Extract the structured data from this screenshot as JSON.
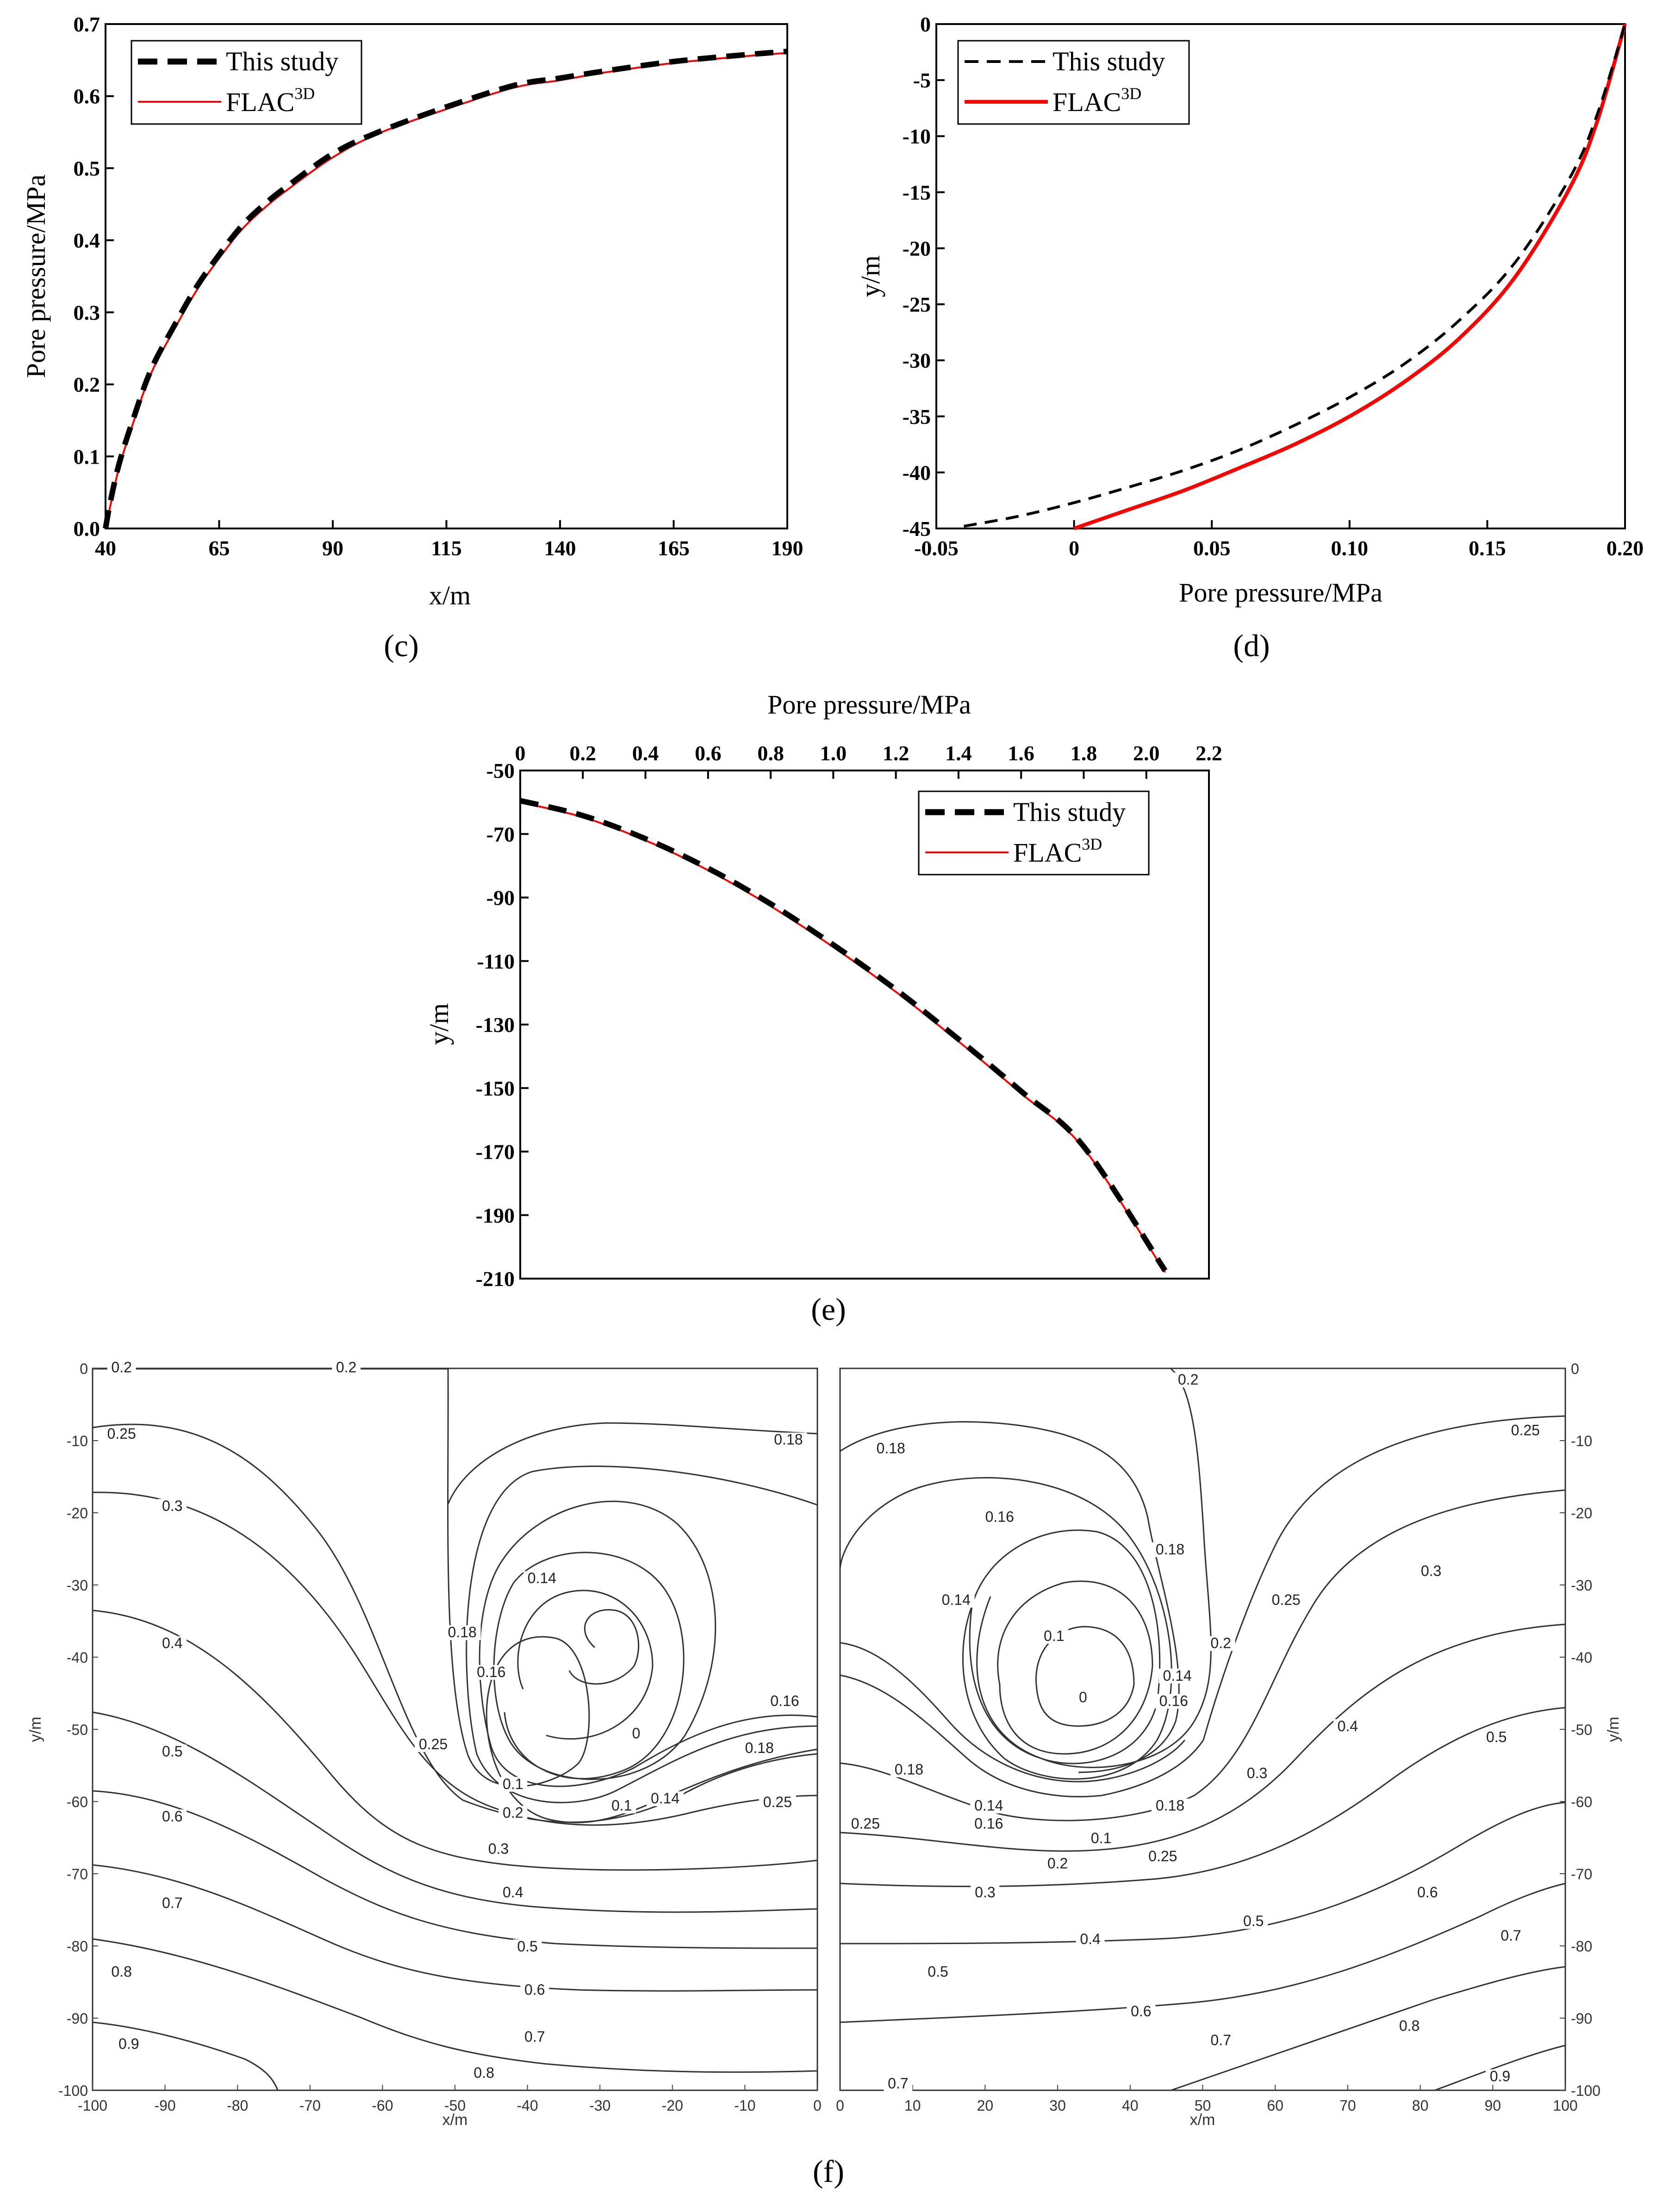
{
  "chart_data": [
    {
      "id": "c",
      "type": "line",
      "panel_label": "(c)",
      "xlabel": "x/m",
      "ylabel": "Pore pressure/MPa",
      "xlim": [
        40,
        190
      ],
      "ylim": [
        0,
        0.7
      ],
      "xticks": [
        "40",
        "65",
        "90",
        "115",
        "140",
        "165",
        "190"
      ],
      "yticks": [
        "0.0",
        "0.1",
        "0.2",
        "0.3",
        "0.4",
        "0.5",
        "0.6",
        "0.7"
      ],
      "legend_position": "top-left",
      "series": [
        {
          "name": "This study",
          "legend_main": "This study",
          "legend_sup": "",
          "style": "dashed-thick",
          "color": "#000000",
          "x": [
            40,
            41,
            43,
            46,
            50,
            55,
            60,
            65,
            70,
            75,
            80,
            90,
            100,
            115,
            130,
            140,
            150,
            165,
            180,
            190
          ],
          "y": [
            0.0,
            0.035,
            0.09,
            0.15,
            0.22,
            0.28,
            0.335,
            0.38,
            0.42,
            0.45,
            0.475,
            0.52,
            0.55,
            0.585,
            0.615,
            0.625,
            0.635,
            0.648,
            0.657,
            0.662
          ]
        },
        {
          "name": "FLAC3D",
          "legend_main": "FLAC",
          "legend_sup": "3D",
          "style": "solid-thin",
          "color": "#ff0000",
          "x": [
            40,
            41,
            43,
            46,
            50,
            55,
            60,
            65,
            70,
            75,
            80,
            90,
            100,
            115,
            130,
            140,
            150,
            165,
            180,
            190
          ],
          "y": [
            0.0,
            0.03,
            0.085,
            0.145,
            0.215,
            0.275,
            0.33,
            0.375,
            0.415,
            0.445,
            0.47,
            0.515,
            0.548,
            0.582,
            0.612,
            0.622,
            0.633,
            0.646,
            0.655,
            0.66
          ]
        }
      ]
    },
    {
      "id": "d",
      "type": "line",
      "panel_label": "(d)",
      "xlabel": "Pore pressure/MPa",
      "ylabel": "y/m",
      "xlim": [
        -0.05,
        0.2
      ],
      "ylim": [
        -45,
        0
      ],
      "xticks": [
        "-0.05",
        "0",
        "0.05",
        "0.10",
        "0.15",
        "0.20"
      ],
      "yticks": [
        "0",
        "-5",
        "-10",
        "-15",
        "-20",
        "-25",
        "-30",
        "-35",
        "-40",
        "-45"
      ],
      "legend_position": "top-left",
      "series": [
        {
          "name": "This study",
          "legend_main": "This study",
          "legend_sup": "",
          "style": "dashed",
          "color": "#000000",
          "x": [
            -0.04,
            -0.02,
            0.0,
            0.02,
            0.04,
            0.06,
            0.08,
            0.1,
            0.12,
            0.14,
            0.16,
            0.18,
            0.19,
            0.2
          ],
          "y": [
            -44.8,
            -43.9,
            -42.7,
            -41.3,
            -39.8,
            -38.0,
            -35.8,
            -33.3,
            -30.3,
            -26.4,
            -21.3,
            -13.7,
            -8.0,
            0.0
          ]
        },
        {
          "name": "FLAC3D",
          "legend_main": "FLAC",
          "legend_sup": "3D",
          "style": "solid-thick",
          "color": "#ff0000",
          "x": [
            0.0,
            0.02,
            0.04,
            0.06,
            0.08,
            0.1,
            0.12,
            0.14,
            0.16,
            0.18,
            0.19,
            0.2
          ],
          "y": [
            -45.0,
            -43.3,
            -41.6,
            -39.6,
            -37.5,
            -35.0,
            -31.9,
            -28.0,
            -22.6,
            -14.6,
            -8.6,
            0.0
          ]
        }
      ]
    },
    {
      "id": "e",
      "type": "line",
      "panel_label": "(e)",
      "xlabel": "Pore pressure/MPa",
      "ylabel": "y/m",
      "xlim": [
        0,
        2.2
      ],
      "ylim": [
        -210,
        -50
      ],
      "xticks": [
        "0",
        "0.2",
        "0.4",
        "0.6",
        "0.8",
        "1.0",
        "1.2",
        "1.4",
        "1.6",
        "1.8",
        "2.0",
        "2.2"
      ],
      "yticks": [
        "-50",
        "-70",
        "-90",
        "-110",
        "-130",
        "-150",
        "-170",
        "-190",
        "-210"
      ],
      "legend_position": "top-right",
      "series": [
        {
          "name": "This study",
          "legend_main": "This study",
          "legend_sup": "",
          "style": "dashed-thick",
          "color": "#000000",
          "x": [
            0.0,
            0.2,
            0.4,
            0.6,
            0.8,
            1.0,
            1.2,
            1.4,
            1.6,
            1.8,
            2.06
          ],
          "y": [
            -59.5,
            -64.2,
            -71.5,
            -80.8,
            -92.0,
            -104.9,
            -119.0,
            -134.6,
            -151.0,
            -168.4,
            -207.5
          ]
        },
        {
          "name": "FLAC3D",
          "legend_main": "FLAC",
          "legend_sup": "3D",
          "style": "solid-thin",
          "color": "#ff0000",
          "x": [
            0.0,
            0.2,
            0.4,
            0.6,
            0.8,
            1.0,
            1.2,
            1.4,
            1.6,
            1.8,
            2.06
          ],
          "y": [
            -60.0,
            -64.7,
            -72.0,
            -81.4,
            -92.7,
            -105.6,
            -119.7,
            -135.3,
            -151.7,
            -169.0,
            -208.0
          ]
        }
      ]
    },
    {
      "id": "f-left",
      "type": "contour",
      "xlabel": "x/m",
      "ylabel": "y/m",
      "xlim": [
        -100,
        0
      ],
      "ylim": [
        -100,
        0
      ],
      "xticks": [
        "-100",
        "-90",
        "-80",
        "-70",
        "-60",
        "-50",
        "-40",
        "-30",
        "-20",
        "-10",
        "0"
      ],
      "yticks": [
        "0",
        "-10",
        "-20",
        "-30",
        "-40",
        "-50",
        "-60",
        "-70",
        "-80",
        "-90",
        "-100"
      ],
      "contour_labels": [
        {
          "text": "0.2",
          "x": -96,
          "y": -0.3
        },
        {
          "text": "0.2",
          "x": -65,
          "y": -0.3
        },
        {
          "text": "0.18",
          "x": -4,
          "y": -10.3
        },
        {
          "text": "0.25",
          "x": -96,
          "y": -9.5
        },
        {
          "text": "0.3",
          "x": -89,
          "y": -19.5
        },
        {
          "text": "0.4",
          "x": -89,
          "y": -38.5
        },
        {
          "text": "0.5",
          "x": -89,
          "y": -53.5
        },
        {
          "text": "0.6",
          "x": -89,
          "y": -62.5
        },
        {
          "text": "0.7",
          "x": -89,
          "y": -74.5
        },
        {
          "text": "0.8",
          "x": -96,
          "y": -84
        },
        {
          "text": "0.9",
          "x": -95,
          "y": -94
        },
        {
          "text": "0.8",
          "x": -46,
          "y": -98
        },
        {
          "text": "0.7",
          "x": -39,
          "y": -93
        },
        {
          "text": "0.6",
          "x": -39,
          "y": -86.5
        },
        {
          "text": "0.5",
          "x": -40,
          "y": -80.5
        },
        {
          "text": "0.4",
          "x": -42,
          "y": -73
        },
        {
          "text": "0.3",
          "x": -44,
          "y": -67
        },
        {
          "text": "0.25",
          "x": -53,
          "y": -52.5
        },
        {
          "text": "0.18",
          "x": -49,
          "y": -37
        },
        {
          "text": "0.16",
          "x": -45,
          "y": -42.5
        },
        {
          "text": "0.14",
          "x": -38,
          "y": -29.5
        },
        {
          "text": "0.2",
          "x": -42,
          "y": -62
        },
        {
          "text": "0.1",
          "x": -42,
          "y": -58
        },
        {
          "text": "0.1",
          "x": -27,
          "y": -61
        },
        {
          "text": "0.14",
          "x": -21,
          "y": -60
        },
        {
          "text": "0",
          "x": -25,
          "y": -51
        },
        {
          "text": "0.16",
          "x": -4.5,
          "y": -46.5
        },
        {
          "text": "0.18",
          "x": -8,
          "y": -53
        },
        {
          "text": "0.25",
          "x": -5.5,
          "y": -60.5
        }
      ]
    },
    {
      "id": "f-right",
      "type": "contour",
      "panel_label": "(f)",
      "xlabel": "x/m",
      "ylabel": "y/m",
      "xlim": [
        0,
        100
      ],
      "ylim": [
        -100,
        0
      ],
      "xticks": [
        "0",
        "10",
        "20",
        "30",
        "40",
        "50",
        "60",
        "70",
        "80",
        "90",
        "100"
      ],
      "yticks": [
        "0",
        "-10",
        "-20",
        "-30",
        "-40",
        "-50",
        "-60",
        "-70",
        "-80",
        "-90",
        "-100"
      ],
      "contour_labels": [
        {
          "text": "0.2",
          "x": 48,
          "y": -2
        },
        {
          "text": "0.18",
          "x": 7,
          "y": -11.5
        },
        {
          "text": "0.25",
          "x": 94.5,
          "y": -9
        },
        {
          "text": "0.16",
          "x": 22,
          "y": -21
        },
        {
          "text": "0.18",
          "x": 45.5,
          "y": -25.5
        },
        {
          "text": "0.3",
          "x": 81.5,
          "y": -28.5
        },
        {
          "text": "0.14",
          "x": 16,
          "y": -32.5
        },
        {
          "text": "0.25",
          "x": 61.5,
          "y": -32.5
        },
        {
          "text": "0.1",
          "x": 29.5,
          "y": -37.5
        },
        {
          "text": "0.2",
          "x": 52.5,
          "y": -38.5
        },
        {
          "text": "0.14",
          "x": 46.5,
          "y": -43
        },
        {
          "text": "0.16",
          "x": 46,
          "y": -46.5
        },
        {
          "text": "0",
          "x": 33.5,
          "y": -46
        },
        {
          "text": "0.4",
          "x": 70,
          "y": -50
        },
        {
          "text": "0.5",
          "x": 90.5,
          "y": -51.5
        },
        {
          "text": "0.18",
          "x": 9.5,
          "y": -56
        },
        {
          "text": "0.3",
          "x": 57.5,
          "y": -56.5
        },
        {
          "text": "0.14",
          "x": 20.5,
          "y": -61
        },
        {
          "text": "0.16",
          "x": 20.5,
          "y": -63.5
        },
        {
          "text": "0.18",
          "x": 45.5,
          "y": -61
        },
        {
          "text": "0.25",
          "x": 3.5,
          "y": -63.5
        },
        {
          "text": "0.1",
          "x": 36,
          "y": -65.5
        },
        {
          "text": "0.25",
          "x": 44.5,
          "y": -68
        },
        {
          "text": "0.2",
          "x": 30,
          "y": -69
        },
        {
          "text": "0.3",
          "x": 20,
          "y": -73
        },
        {
          "text": "0.6",
          "x": 81,
          "y": -73
        },
        {
          "text": "0.4",
          "x": 34.5,
          "y": -79.5
        },
        {
          "text": "0.5",
          "x": 57,
          "y": -77
        },
        {
          "text": "0.7",
          "x": 92.5,
          "y": -79
        },
        {
          "text": "0.5",
          "x": 13.5,
          "y": -84
        },
        {
          "text": "0.6",
          "x": 41.5,
          "y": -89.5
        },
        {
          "text": "0.7",
          "x": 52.5,
          "y": -93.5
        },
        {
          "text": "0.8",
          "x": 78.5,
          "y": -91.5
        },
        {
          "text": "0.9",
          "x": 91,
          "y": -98.5
        },
        {
          "text": "0.7",
          "x": 8,
          "y": -99.5
        }
      ]
    }
  ]
}
